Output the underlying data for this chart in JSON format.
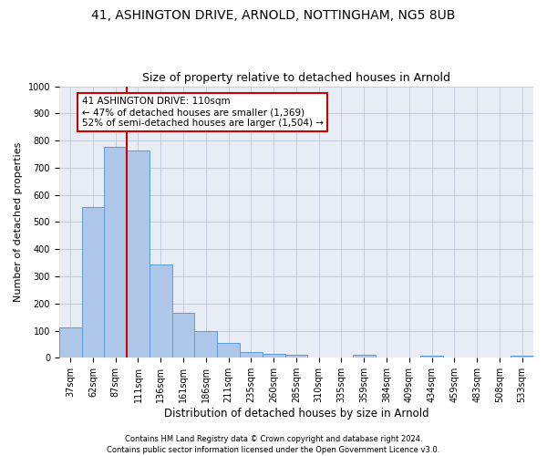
{
  "title": "41, ASHINGTON DRIVE, ARNOLD, NOTTINGHAM, NG5 8UB",
  "subtitle": "Size of property relative to detached houses in Arnold",
  "xlabel": "Distribution of detached houses by size in Arnold",
  "ylabel": "Number of detached properties",
  "footer_line1": "Contains HM Land Registry data © Crown copyright and database right 2024.",
  "footer_line2": "Contains public sector information licensed under the Open Government Licence v3.0.",
  "bar_labels": [
    "37sqm",
    "62sqm",
    "87sqm",
    "111sqm",
    "136sqm",
    "161sqm",
    "186sqm",
    "211sqm",
    "235sqm",
    "260sqm",
    "285sqm",
    "310sqm",
    "335sqm",
    "359sqm",
    "384sqm",
    "409sqm",
    "434sqm",
    "459sqm",
    "483sqm",
    "508sqm",
    "533sqm"
  ],
  "bar_values": [
    112,
    555,
    778,
    762,
    345,
    165,
    98,
    55,
    20,
    13,
    12,
    0,
    0,
    10,
    0,
    0,
    8,
    0,
    0,
    0,
    8
  ],
  "bar_color": "#aec6e8",
  "bar_edge_color": "#5b9bd5",
  "vline_color": "#cc0000",
  "vline_position": 2.5,
  "annotation_box_color": "#cc0000",
  "property_label": "41 ASHINGTON DRIVE: 110sqm",
  "annotation_line1": "← 47% of detached houses are smaller (1,369)",
  "annotation_line2": "52% of semi-detached houses are larger (1,504) →",
  "ylim": [
    0,
    1000
  ],
  "yticks": [
    0,
    100,
    200,
    300,
    400,
    500,
    600,
    700,
    800,
    900,
    1000
  ],
  "grid_color": "#c0c8d8",
  "bg_color": "#e8edf5",
  "title_fontsize": 10,
  "subtitle_fontsize": 9,
  "ylabel_fontsize": 8,
  "xlabel_fontsize": 8.5,
  "tick_fontsize": 7,
  "footer_fontsize": 6,
  "annot_fontsize": 7.5
}
